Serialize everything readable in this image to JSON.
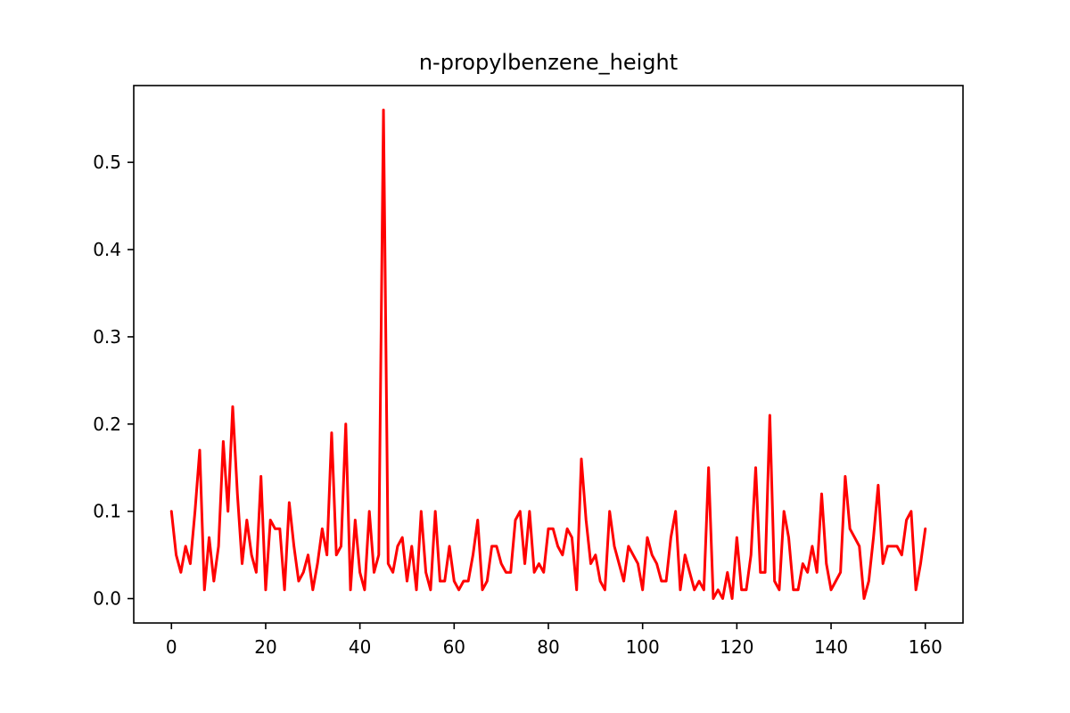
{
  "chart_data": {
    "type": "line",
    "title": "n-propylbenzene_height",
    "xlabel": "",
    "ylabel": "",
    "xlim": [
      -8,
      168
    ],
    "ylim": [
      -0.028,
      0.588
    ],
    "xticks": [
      0,
      20,
      40,
      60,
      80,
      100,
      120,
      140,
      160
    ],
    "yticks": [
      0.0,
      0.1,
      0.2,
      0.3,
      0.4,
      0.5
    ],
    "ytick_labels": [
      "0.0",
      "0.1",
      "0.2",
      "0.3",
      "0.4",
      "0.5"
    ],
    "grid": false,
    "line_color": "#ff0000",
    "series": [
      {
        "x": [
          0,
          1,
          2,
          3,
          4,
          5,
          6,
          7,
          8,
          9,
          10,
          11,
          12,
          13,
          14,
          15,
          16,
          17,
          18,
          19,
          20,
          21,
          22,
          23,
          24,
          25,
          26,
          27,
          28,
          29,
          30,
          31,
          32,
          33,
          34,
          35,
          36,
          37,
          38,
          39,
          40,
          41,
          42,
          43,
          44,
          45,
          46,
          47,
          48,
          49,
          50,
          51,
          52,
          53,
          54,
          55,
          56,
          57,
          58,
          59,
          60,
          61,
          62,
          63,
          64,
          65,
          66,
          67,
          68,
          69,
          70,
          71,
          72,
          73,
          74,
          75,
          76,
          77,
          78,
          79,
          80,
          81,
          82,
          83,
          84,
          85,
          86,
          87,
          88,
          89,
          90,
          91,
          92,
          93,
          94,
          95,
          96,
          97,
          98,
          99,
          100,
          101,
          102,
          103,
          104,
          105,
          106,
          107,
          108,
          109,
          110,
          111,
          112,
          113,
          114,
          115,
          116,
          117,
          118,
          119,
          120,
          121,
          122,
          123,
          124,
          125,
          126,
          127,
          128,
          129,
          130,
          131,
          132,
          133,
          134,
          135,
          136,
          137,
          138,
          139,
          140,
          141,
          142,
          143,
          144,
          145,
          146,
          147,
          148,
          149,
          150,
          151,
          152,
          153,
          154,
          155,
          156,
          157,
          158,
          159,
          160
        ],
        "y": [
          0.1,
          0.05,
          0.03,
          0.06,
          0.04,
          0.1,
          0.17,
          0.01,
          0.07,
          0.02,
          0.06,
          0.18,
          0.1,
          0.22,
          0.12,
          0.04,
          0.09,
          0.05,
          0.03,
          0.14,
          0.01,
          0.09,
          0.08,
          0.08,
          0.01,
          0.11,
          0.06,
          0.02,
          0.03,
          0.05,
          0.01,
          0.04,
          0.08,
          0.05,
          0.19,
          0.05,
          0.06,
          0.2,
          0.01,
          0.09,
          0.03,
          0.01,
          0.1,
          0.03,
          0.05,
          0.56,
          0.04,
          0.03,
          0.06,
          0.07,
          0.02,
          0.06,
          0.01,
          0.1,
          0.03,
          0.01,
          0.1,
          0.02,
          0.02,
          0.06,
          0.02,
          0.01,
          0.02,
          0.02,
          0.05,
          0.09,
          0.01,
          0.02,
          0.06,
          0.06,
          0.04,
          0.03,
          0.03,
          0.09,
          0.1,
          0.04,
          0.1,
          0.03,
          0.04,
          0.03,
          0.08,
          0.08,
          0.06,
          0.05,
          0.08,
          0.07,
          0.01,
          0.16,
          0.09,
          0.04,
          0.05,
          0.02,
          0.01,
          0.1,
          0.06,
          0.04,
          0.02,
          0.06,
          0.05,
          0.04,
          0.01,
          0.07,
          0.05,
          0.04,
          0.02,
          0.02,
          0.07,
          0.1,
          0.01,
          0.05,
          0.03,
          0.01,
          0.02,
          0.01,
          0.15,
          0.0,
          0.01,
          0.0,
          0.03,
          0.0,
          0.07,
          0.01,
          0.01,
          0.05,
          0.15,
          0.03,
          0.03,
          0.21,
          0.02,
          0.01,
          0.1,
          0.07,
          0.01,
          0.01,
          0.04,
          0.03,
          0.06,
          0.03,
          0.12,
          0.04,
          0.01,
          0.02,
          0.03,
          0.14,
          0.08,
          0.07,
          0.06,
          0.0,
          0.02,
          0.07,
          0.13,
          0.04,
          0.06,
          0.06,
          0.06,
          0.05,
          0.09,
          0.1,
          0.01,
          0.04,
          0.08
        ]
      }
    ]
  }
}
